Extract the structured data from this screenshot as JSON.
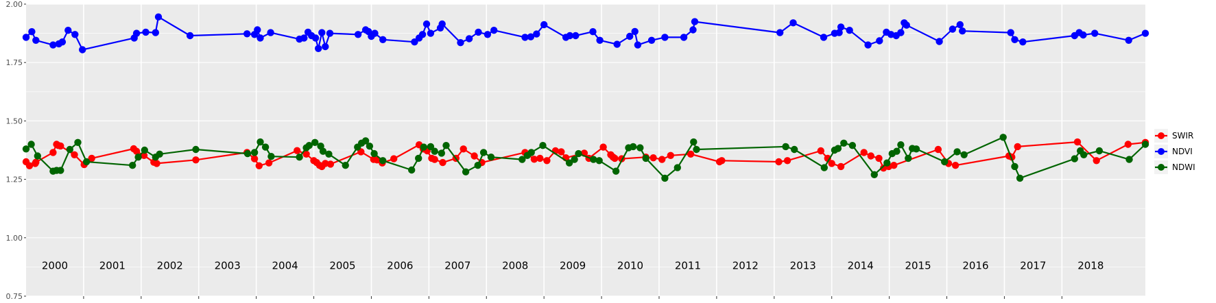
{
  "chart_data": {
    "type": "line",
    "title": "",
    "xlabel": "",
    "ylabel": "",
    "xlim": [
      1999.5,
      2018.95
    ],
    "ylim": [
      0.75,
      2.0
    ],
    "y_ticks": [
      "0.75",
      "1.00",
      "1.25",
      "1.50",
      "1.75",
      "2.00"
    ],
    "y_tick_values": [
      0.75,
      1.0,
      1.25,
      1.5,
      1.75,
      2.0
    ],
    "year_labels": [
      "2000",
      "2001",
      "2002",
      "2003",
      "2004",
      "2005",
      "2006",
      "2007",
      "2008",
      "2009",
      "2010",
      "2011",
      "2012",
      "2013",
      "2014",
      "2015",
      "2016",
      "2017",
      "2018"
    ],
    "year_label_y": 0.88,
    "grid": true,
    "legend_position": "right",
    "series": [
      {
        "name": "SWIR",
        "color": "#ff0000",
        "points": [
          [
            1999.5,
            1.325
          ],
          [
            1999.56,
            1.308
          ],
          [
            1999.66,
            1.318
          ],
          [
            1999.67,
            1.323
          ],
          [
            1999.97,
            1.365
          ],
          [
            2000.03,
            1.4
          ],
          [
            2000.06,
            1.395
          ],
          [
            2000.1,
            1.393
          ],
          [
            2000.34,
            1.355
          ],
          [
            2000.51,
            1.313
          ],
          [
            2000.64,
            1.34
          ],
          [
            2001.37,
            1.381
          ],
          [
            2001.42,
            1.37
          ],
          [
            2001.55,
            1.352
          ],
          [
            2001.72,
            1.323
          ],
          [
            2001.77,
            1.318
          ],
          [
            2002.45,
            1.333
          ],
          [
            2003.34,
            1.365
          ],
          [
            2003.47,
            1.338
          ],
          [
            2003.55,
            1.308
          ],
          [
            2003.72,
            1.32
          ],
          [
            2004.21,
            1.373
          ],
          [
            2004.37,
            1.358
          ],
          [
            2004.5,
            1.33
          ],
          [
            2004.55,
            1.322
          ],
          [
            2004.6,
            1.31
          ],
          [
            2004.64,
            1.305
          ],
          [
            2004.7,
            1.318
          ],
          [
            2004.79,
            1.315
          ],
          [
            2005.32,
            1.368
          ],
          [
            2005.54,
            1.335
          ],
          [
            2005.6,
            1.333
          ],
          [
            2005.69,
            1.32
          ],
          [
            2005.89,
            1.338
          ],
          [
            2006.33,
            1.398
          ],
          [
            2006.4,
            1.38
          ],
          [
            2006.47,
            1.372
          ],
          [
            2006.55,
            1.34
          ],
          [
            2006.6,
            1.335
          ],
          [
            2006.74,
            1.322
          ],
          [
            2006.97,
            1.34
          ],
          [
            2007.1,
            1.38
          ],
          [
            2007.29,
            1.35
          ],
          [
            2007.42,
            1.322
          ],
          [
            2008.17,
            1.365
          ],
          [
            2008.33,
            1.336
          ],
          [
            2008.43,
            1.34
          ],
          [
            2008.55,
            1.33
          ],
          [
            2008.7,
            1.372
          ],
          [
            2008.8,
            1.368
          ],
          [
            2008.88,
            1.342
          ],
          [
            2009.2,
            1.362
          ],
          [
            2009.28,
            1.34
          ],
          [
            2009.53,
            1.388
          ],
          [
            2009.66,
            1.355
          ],
          [
            2009.7,
            1.345
          ],
          [
            2009.73,
            1.34
          ],
          [
            2009.85,
            1.338
          ],
          [
            2010.27,
            1.345
          ],
          [
            2010.4,
            1.342
          ],
          [
            2010.55,
            1.335
          ],
          [
            2010.7,
            1.352
          ],
          [
            2011.05,
            1.358
          ],
          [
            2011.55,
            1.325
          ],
          [
            2011.59,
            1.33
          ],
          [
            2012.58,
            1.325
          ],
          [
            2012.73,
            1.33
          ],
          [
            2013.31,
            1.372
          ],
          [
            2013.43,
            1.34
          ],
          [
            2013.5,
            1.318
          ],
          [
            2013.66,
            1.305
          ],
          [
            2014.06,
            1.365
          ],
          [
            2014.18,
            1.35
          ],
          [
            2014.32,
            1.34
          ],
          [
            2014.4,
            1.298
          ],
          [
            2014.49,
            1.305
          ],
          [
            2014.58,
            1.31
          ],
          [
            2015.35,
            1.378
          ],
          [
            2015.53,
            1.318
          ],
          [
            2015.65,
            1.31
          ],
          [
            2016.58,
            1.35
          ],
          [
            2016.63,
            1.345
          ],
          [
            2016.73,
            1.39
          ],
          [
            2017.77,
            1.41
          ],
          [
            2018.1,
            1.33
          ],
          [
            2018.65,
            1.4
          ],
          [
            2018.95,
            1.408
          ]
        ]
      },
      {
        "name": "NDVI",
        "color": "#0000ff",
        "points": [
          [
            1999.5,
            1.858
          ],
          [
            1999.6,
            1.882
          ],
          [
            1999.67,
            1.845
          ],
          [
            1999.97,
            1.825
          ],
          [
            2000.07,
            1.83
          ],
          [
            2000.13,
            1.838
          ],
          [
            2000.23,
            1.888
          ],
          [
            2000.35,
            1.87
          ],
          [
            2000.48,
            1.805
          ],
          [
            2001.38,
            1.855
          ],
          [
            2001.42,
            1.875
          ],
          [
            2001.58,
            1.88
          ],
          [
            2001.75,
            1.878
          ],
          [
            2001.8,
            1.945
          ],
          [
            2002.35,
            1.865
          ],
          [
            2003.34,
            1.873
          ],
          [
            2003.47,
            1.87
          ],
          [
            2003.52,
            1.89
          ],
          [
            2003.57,
            1.855
          ],
          [
            2003.75,
            1.878
          ],
          [
            2004.25,
            1.85
          ],
          [
            2004.33,
            1.855
          ],
          [
            2004.4,
            1.88
          ],
          [
            2004.46,
            1.865
          ],
          [
            2004.53,
            1.855
          ],
          [
            2004.58,
            1.81
          ],
          [
            2004.64,
            1.878
          ],
          [
            2004.7,
            1.818
          ],
          [
            2004.78,
            1.875
          ],
          [
            2005.27,
            1.87
          ],
          [
            2005.4,
            1.89
          ],
          [
            2005.45,
            1.883
          ],
          [
            2005.5,
            1.862
          ],
          [
            2005.56,
            1.875
          ],
          [
            2005.7,
            1.848
          ],
          [
            2006.25,
            1.838
          ],
          [
            2006.33,
            1.855
          ],
          [
            2006.39,
            1.87
          ],
          [
            2006.46,
            1.915
          ],
          [
            2006.53,
            1.875
          ],
          [
            2006.7,
            1.898
          ],
          [
            2006.73,
            1.915
          ],
          [
            2007.05,
            1.835
          ],
          [
            2007.2,
            1.852
          ],
          [
            2007.36,
            1.88
          ],
          [
            2007.52,
            1.87
          ],
          [
            2007.63,
            1.888
          ],
          [
            2008.17,
            1.858
          ],
          [
            2008.27,
            1.86
          ],
          [
            2008.37,
            1.872
          ],
          [
            2008.5,
            1.912
          ],
          [
            2008.88,
            1.858
          ],
          [
            2008.95,
            1.865
          ],
          [
            2009.05,
            1.865
          ],
          [
            2009.35,
            1.882
          ],
          [
            2009.47,
            1.845
          ],
          [
            2009.77,
            1.828
          ],
          [
            2009.99,
            1.862
          ],
          [
            2010.08,
            1.883
          ],
          [
            2010.13,
            1.825
          ],
          [
            2010.37,
            1.845
          ],
          [
            2010.6,
            1.858
          ],
          [
            2010.93,
            1.858
          ],
          [
            2011.09,
            1.89
          ],
          [
            2011.12,
            1.925
          ],
          [
            2012.6,
            1.878
          ],
          [
            2012.83,
            1.92
          ],
          [
            2013.36,
            1.858
          ],
          [
            2013.55,
            1.875
          ],
          [
            2013.63,
            1.878
          ],
          [
            2013.66,
            1.902
          ],
          [
            2013.81,
            1.888
          ],
          [
            2014.13,
            1.825
          ],
          [
            2014.33,
            1.843
          ],
          [
            2014.45,
            1.88
          ],
          [
            2014.53,
            1.87
          ],
          [
            2014.62,
            1.865
          ],
          [
            2014.7,
            1.878
          ],
          [
            2014.76,
            1.92
          ],
          [
            2014.8,
            1.91
          ],
          [
            2015.37,
            1.84
          ],
          [
            2015.6,
            1.893
          ],
          [
            2015.73,
            1.912
          ],
          [
            2015.77,
            1.885
          ],
          [
            2016.61,
            1.878
          ],
          [
            2016.68,
            1.848
          ],
          [
            2016.82,
            1.838
          ],
          [
            2017.72,
            1.865
          ],
          [
            2017.8,
            1.878
          ],
          [
            2017.87,
            1.868
          ],
          [
            2018.07,
            1.875
          ],
          [
            2018.66,
            1.845
          ],
          [
            2018.95,
            1.875
          ]
        ]
      },
      {
        "name": "NDWI",
        "color": "#006400",
        "points": [
          [
            1999.5,
            1.38
          ],
          [
            1999.59,
            1.4
          ],
          [
            1999.7,
            1.35
          ],
          [
            1999.97,
            1.285
          ],
          [
            2000.03,
            1.288
          ],
          [
            2000.1,
            1.288
          ],
          [
            2000.26,
            1.378
          ],
          [
            2000.4,
            1.408
          ],
          [
            2000.55,
            1.325
          ],
          [
            2001.35,
            1.31
          ],
          [
            2001.45,
            1.345
          ],
          [
            2001.56,
            1.375
          ],
          [
            2001.75,
            1.345
          ],
          [
            2001.82,
            1.358
          ],
          [
            2002.45,
            1.378
          ],
          [
            2003.35,
            1.36
          ],
          [
            2003.47,
            1.365
          ],
          [
            2003.57,
            1.41
          ],
          [
            2003.66,
            1.388
          ],
          [
            2003.76,
            1.348
          ],
          [
            2004.25,
            1.345
          ],
          [
            2004.37,
            1.385
          ],
          [
            2004.42,
            1.395
          ],
          [
            2004.52,
            1.408
          ],
          [
            2004.62,
            1.392
          ],
          [
            2004.66,
            1.37
          ],
          [
            2004.76,
            1.358
          ],
          [
            2005.05,
            1.31
          ],
          [
            2005.26,
            1.388
          ],
          [
            2005.33,
            1.405
          ],
          [
            2005.4,
            1.415
          ],
          [
            2005.47,
            1.392
          ],
          [
            2005.55,
            1.36
          ],
          [
            2005.7,
            1.33
          ],
          [
            2006.2,
            1.29
          ],
          [
            2006.32,
            1.34
          ],
          [
            2006.41,
            1.388
          ],
          [
            2006.53,
            1.39
          ],
          [
            2006.6,
            1.37
          ],
          [
            2006.72,
            1.362
          ],
          [
            2006.8,
            1.395
          ],
          [
            2007.14,
            1.282
          ],
          [
            2007.35,
            1.31
          ],
          [
            2007.45,
            1.365
          ],
          [
            2007.58,
            1.345
          ],
          [
            2008.12,
            1.335
          ],
          [
            2008.21,
            1.352
          ],
          [
            2008.28,
            1.365
          ],
          [
            2008.48,
            1.395
          ],
          [
            2008.94,
            1.32
          ],
          [
            2009.03,
            1.335
          ],
          [
            2009.1,
            1.36
          ],
          [
            2009.36,
            1.335
          ],
          [
            2009.46,
            1.33
          ],
          [
            2009.75,
            1.285
          ],
          [
            2009.97,
            1.385
          ],
          [
            2010.05,
            1.39
          ],
          [
            2010.17,
            1.385
          ],
          [
            2010.27,
            1.34
          ],
          [
            2010.6,
            1.255
          ],
          [
            2010.82,
            1.3
          ],
          [
            2011.1,
            1.41
          ],
          [
            2011.15,
            1.378
          ],
          [
            2012.7,
            1.39
          ],
          [
            2012.85,
            1.378
          ],
          [
            2013.37,
            1.3
          ],
          [
            2013.55,
            1.375
          ],
          [
            2013.61,
            1.382
          ],
          [
            2013.71,
            1.405
          ],
          [
            2013.86,
            1.395
          ],
          [
            2014.24,
            1.27
          ],
          [
            2014.46,
            1.32
          ],
          [
            2014.55,
            1.36
          ],
          [
            2014.63,
            1.37
          ],
          [
            2014.7,
            1.398
          ],
          [
            2014.83,
            1.34
          ],
          [
            2014.9,
            1.382
          ],
          [
            2014.97,
            1.38
          ],
          [
            2015.46,
            1.325
          ],
          [
            2015.68,
            1.368
          ],
          [
            2015.8,
            1.355
          ],
          [
            2016.48,
            1.43
          ],
          [
            2016.68,
            1.305
          ],
          [
            2016.77,
            1.255
          ],
          [
            2017.72,
            1.338
          ],
          [
            2017.82,
            1.372
          ],
          [
            2017.88,
            1.355
          ],
          [
            2018.15,
            1.372
          ],
          [
            2018.67,
            1.335
          ],
          [
            2018.95,
            1.4
          ]
        ]
      }
    ]
  }
}
